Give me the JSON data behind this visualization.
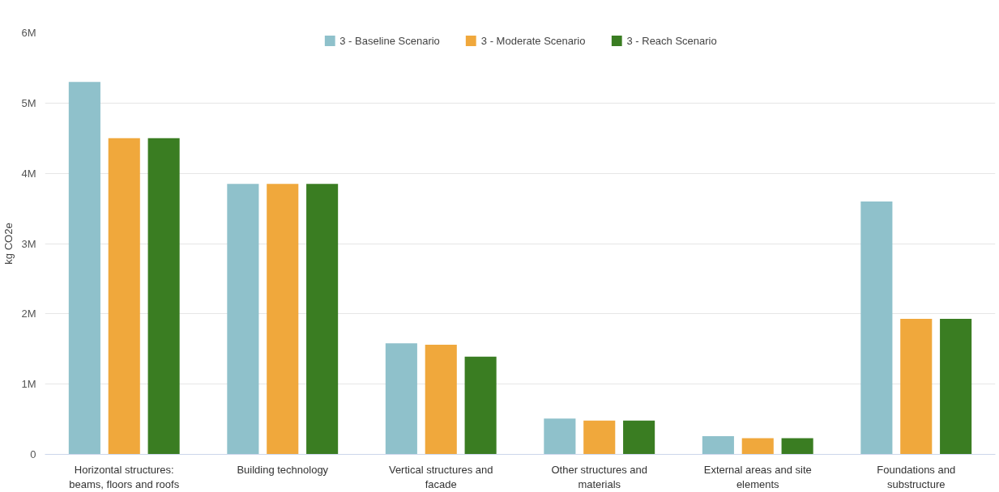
{
  "chart_data": {
    "type": "bar",
    "ylabel": "kg CO2e",
    "categories": [
      "Horizontal structures: beams, floors and roofs",
      "Building technology",
      "Vertical structures and facade",
      "Other structures and materials",
      "External areas and site elements",
      "Foundations and substructure"
    ],
    "series": [
      {
        "name": "3 - Baseline Scenario",
        "color": "#8fc1cb",
        "values": [
          5300000,
          3850000,
          1580000,
          510000,
          260000,
          3600000
        ]
      },
      {
        "name": "3 - Moderate Scenario",
        "color": "#f0a83c",
        "values": [
          4500000,
          3850000,
          1560000,
          480000,
          230000,
          1930000
        ]
      },
      {
        "name": "3 - Reach Scenario",
        "color": "#3a7d22",
        "values": [
          4500000,
          3850000,
          1390000,
          480000,
          230000,
          1930000
        ]
      }
    ],
    "ylim": [
      0,
      6000000
    ],
    "yticks": [
      {
        "value": 0,
        "label": "0"
      },
      {
        "value": 1000000,
        "label": "1M"
      },
      {
        "value": 2000000,
        "label": "2M"
      },
      {
        "value": 3000000,
        "label": "3M"
      },
      {
        "value": 4000000,
        "label": "4M"
      },
      {
        "value": 5000000,
        "label": "5M"
      },
      {
        "value": 6000000,
        "label": "6M"
      }
    ],
    "grid": "y",
    "legend": "top"
  }
}
